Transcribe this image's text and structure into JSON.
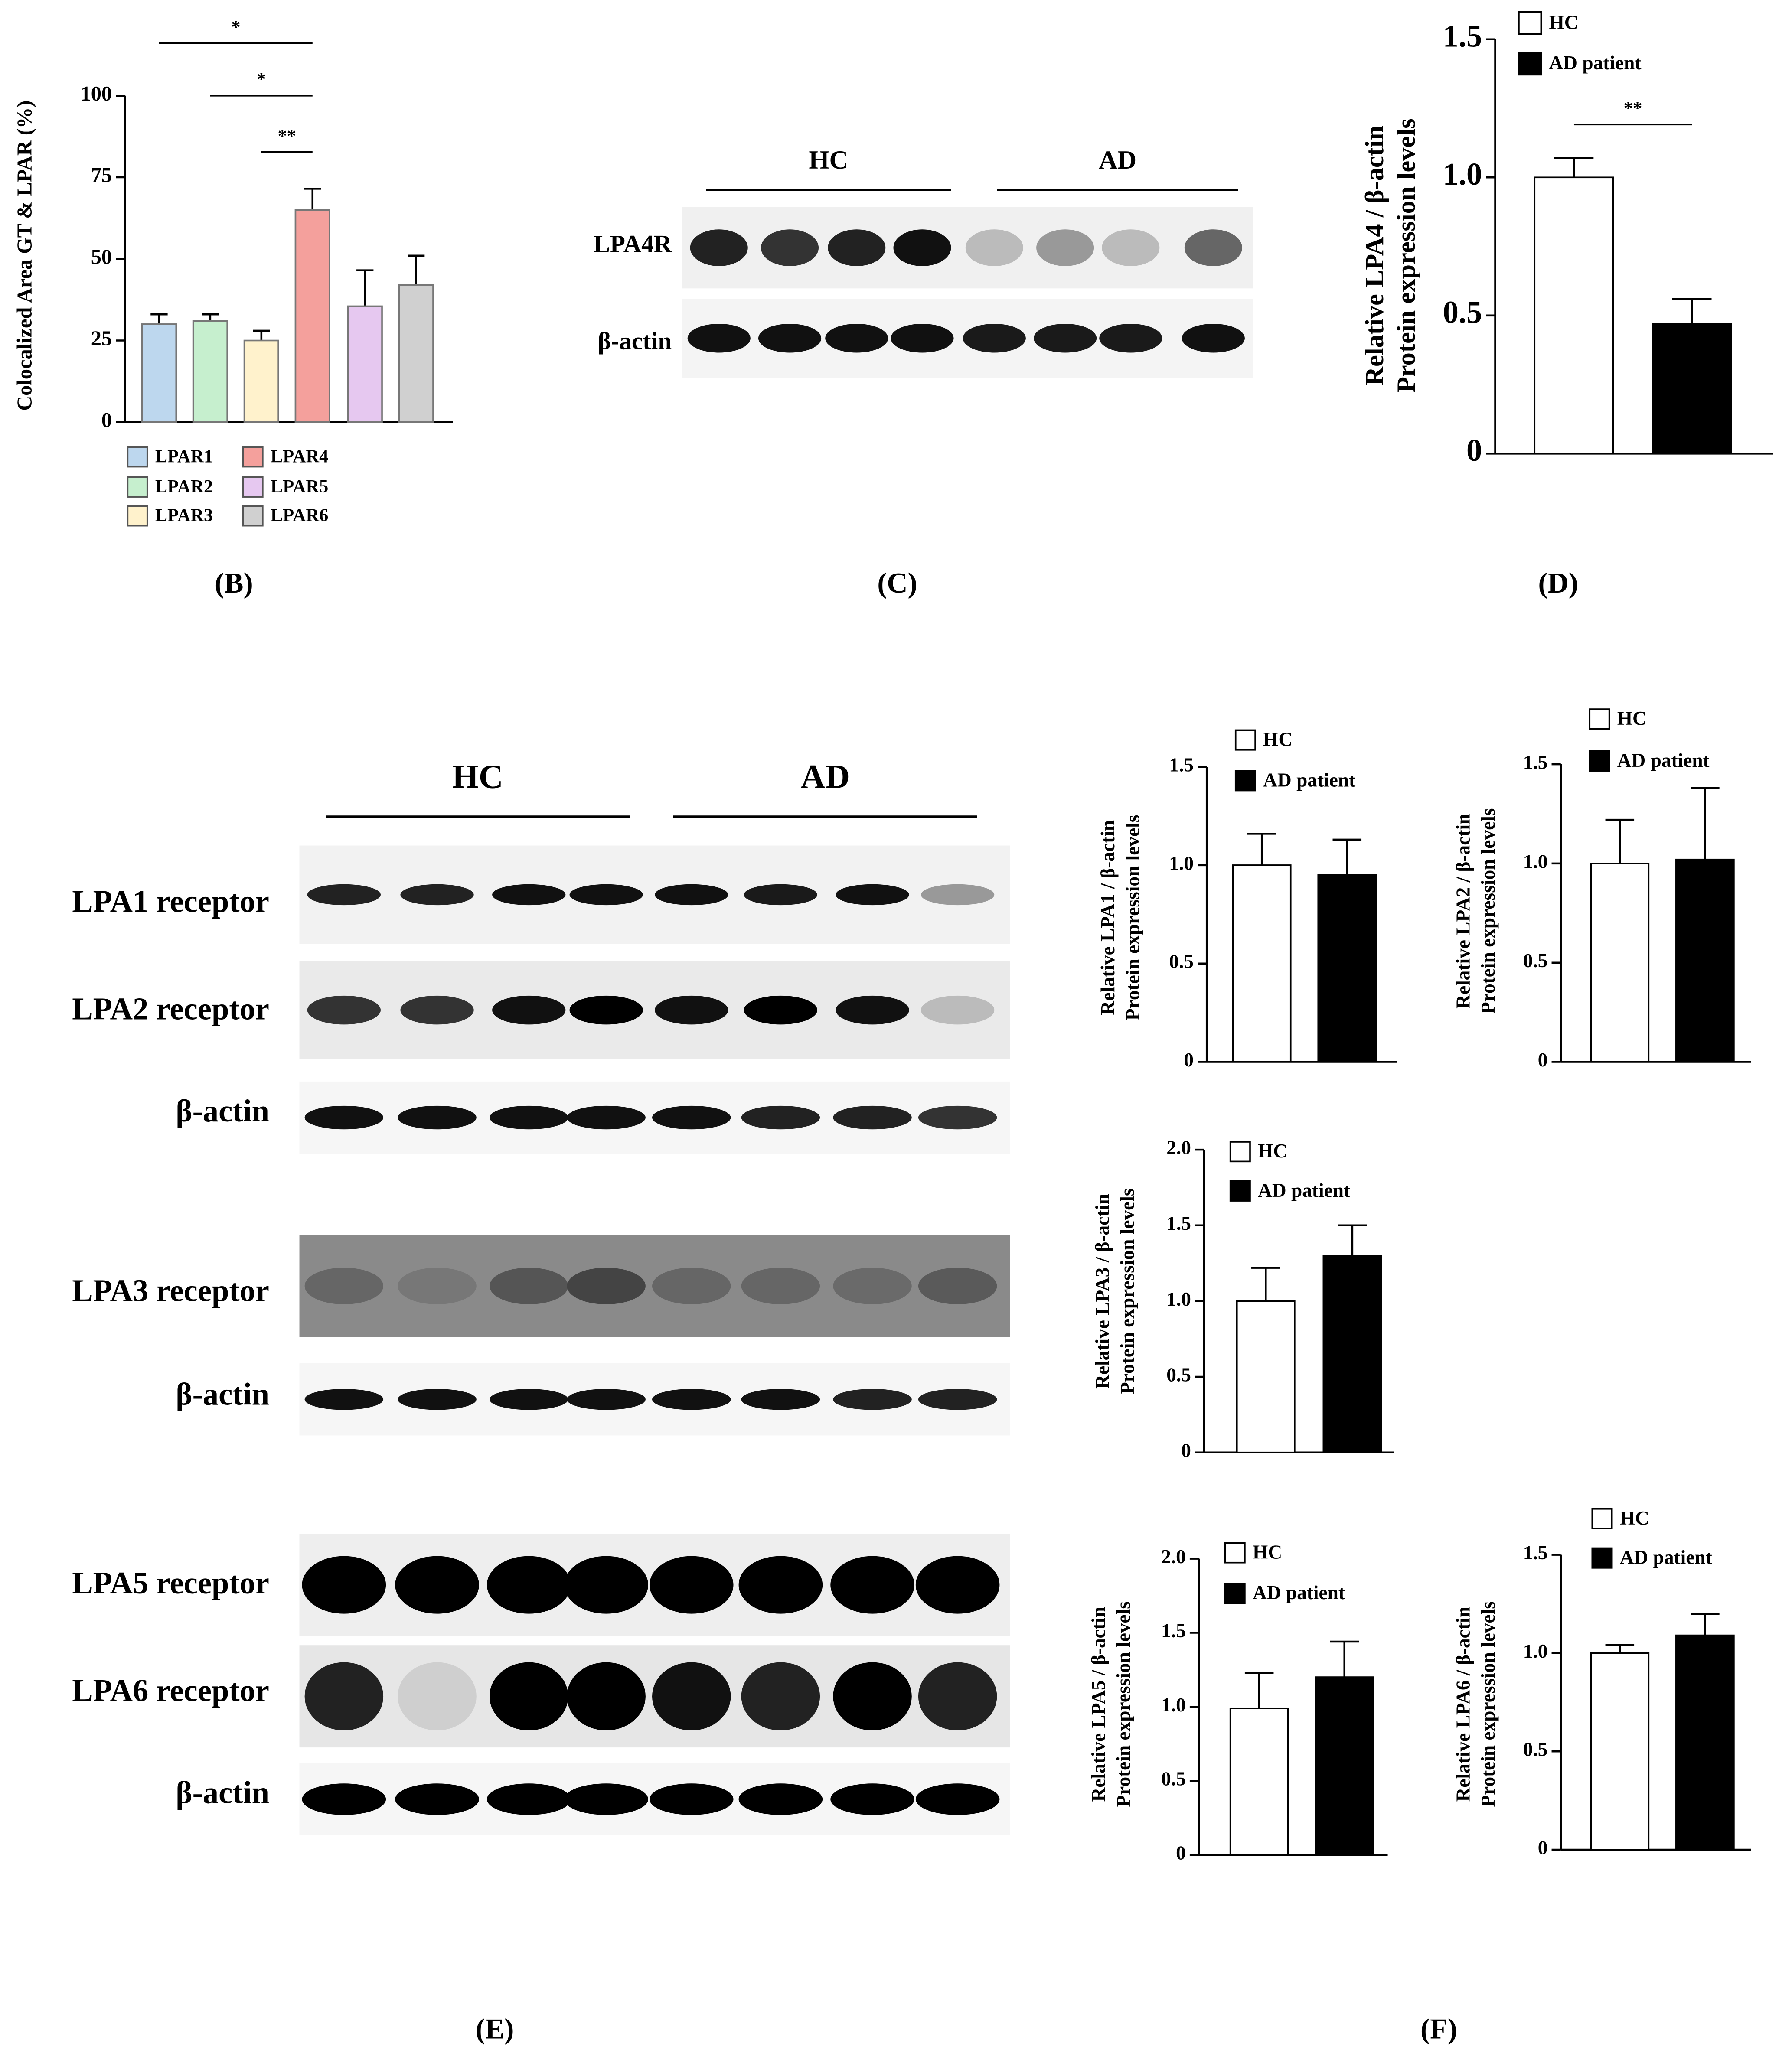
{
  "chart_data": [
    {
      "type": "bar",
      "categories": [
        "LPAR1",
        "LPAR2",
        "LPAR3",
        "LPAR4",
        "LPAR5",
        "LPAR6"
      ],
      "values": [
        30,
        31,
        25,
        65,
        35.5,
        42
      ],
      "errors": [
        3,
        2,
        3,
        6.5,
        11,
        9
      ],
      "colors": [
        "#bdd7ee",
        "#c6efce",
        "#fff2cc",
        "#f4a09c",
        "#e6c8f0",
        "#d0d0d0"
      ],
      "ylim": [
        0,
        100
      ],
      "yticks": [
        0,
        25,
        50,
        75,
        100
      ],
      "ylabel": "Colocalized Area GT & LPAR (%)",
      "annotations": [
        "*",
        "*",
        "**"
      ]
    },
    {
      "type": "bar",
      "categories": [
        "HC",
        "AD patient"
      ],
      "values": [
        1.0,
        0.47
      ],
      "errors": [
        0.07,
        0.09
      ],
      "colors": [
        "#ffffff",
        "#000000"
      ],
      "ylim": [
        0,
        1.5
      ],
      "yticks": [
        0,
        0.5,
        {
          "value": 1,
          "label": "1.0"
        },
        1.5
      ],
      "ylabel": [
        "Relative LPA4 / β-actin",
        "Protein expression levels"
      ],
      "annotations": [
        "**"
      ]
    },
    {
      "type": "bar",
      "categories": [
        "HC",
        "AD patient"
      ],
      "values": [
        1.0,
        0.95
      ],
      "errors": [
        0.16,
        0.18
      ],
      "colors": [
        "#ffffff",
        "#000000"
      ],
      "ylim": [
        0,
        1.5
      ],
      "yticks": [
        0,
        0.5,
        {
          "value": 1,
          "label": "1.0"
        },
        1.5
      ],
      "ylabel": [
        "Relative LPA1 / β-actin",
        "Protein expression levels"
      ]
    },
    {
      "type": "bar",
      "categories": [
        "HC",
        "AD patient"
      ],
      "values": [
        1.0,
        1.02
      ],
      "errors": [
        0.22,
        0.36
      ],
      "colors": [
        "#ffffff",
        "#000000"
      ],
      "ylim": [
        0,
        1.5
      ],
      "yticks": [
        0,
        0.5,
        {
          "value": 1,
          "label": "1.0"
        },
        1.5
      ],
      "ylabel": [
        "Relative LPA2 / β-actin",
        "Protein expression levels"
      ]
    },
    {
      "type": "bar",
      "categories": [
        "HC",
        "AD patient"
      ],
      "values": [
        1.0,
        1.3
      ],
      "errors": [
        0.22,
        0.2
      ],
      "colors": [
        "#ffffff",
        "#000000"
      ],
      "ylim": [
        0,
        2.0
      ],
      "yticks": [
        0,
        0.5,
        {
          "value": 1,
          "label": "1.0"
        },
        1.5,
        {
          "value": 2,
          "label": "2.0"
        }
      ],
      "ylabel": [
        "Relative LPA3 / β-actin",
        "Protein expression levels"
      ]
    },
    {
      "type": "bar",
      "categories": [
        "HC",
        "AD patient"
      ],
      "values": [
        0.99,
        1.2
      ],
      "errors": [
        0.24,
        0.24
      ],
      "colors": [
        "#ffffff",
        "#000000"
      ],
      "ylim": [
        0,
        2.0
      ],
      "yticks": [
        0,
        0.5,
        {
          "value": 1,
          "label": "1.0"
        },
        1.5,
        {
          "value": 2,
          "label": "2.0"
        }
      ],
      "ylabel": [
        "Relative LPA5 / β-actin",
        "Protein expression levels"
      ]
    },
    {
      "type": "bar",
      "categories": [
        "HC",
        "AD patient"
      ],
      "values": [
        1.0,
        1.09
      ],
      "errors": [
        0.04,
        0.11
      ],
      "colors": [
        "#ffffff",
        "#000000"
      ],
      "ylim": [
        0,
        1.5
      ],
      "yticks": [
        0,
        0.5,
        {
          "value": 1,
          "label": "1.0"
        },
        1.5
      ],
      "ylabel": [
        "Relative LPA6 / β-actin",
        "Protein expression levels"
      ]
    }
  ],
  "blot_c": {
    "groups": [
      "HC",
      "AD"
    ],
    "rows": [
      "LPA4R",
      "β-actin"
    ]
  },
  "blot_e": {
    "groups": [
      "HC",
      "AD"
    ],
    "rows": [
      "LPA1 receptor",
      "LPA2 receptor",
      "β-actin",
      "LPA3 receptor",
      "β-actin",
      "LPA5 receptor",
      "LPA6 receptor",
      "β-actin"
    ]
  },
  "panel_labels": [
    "(B)",
    "(C)",
    "(D)",
    "(E)",
    "(F)"
  ]
}
